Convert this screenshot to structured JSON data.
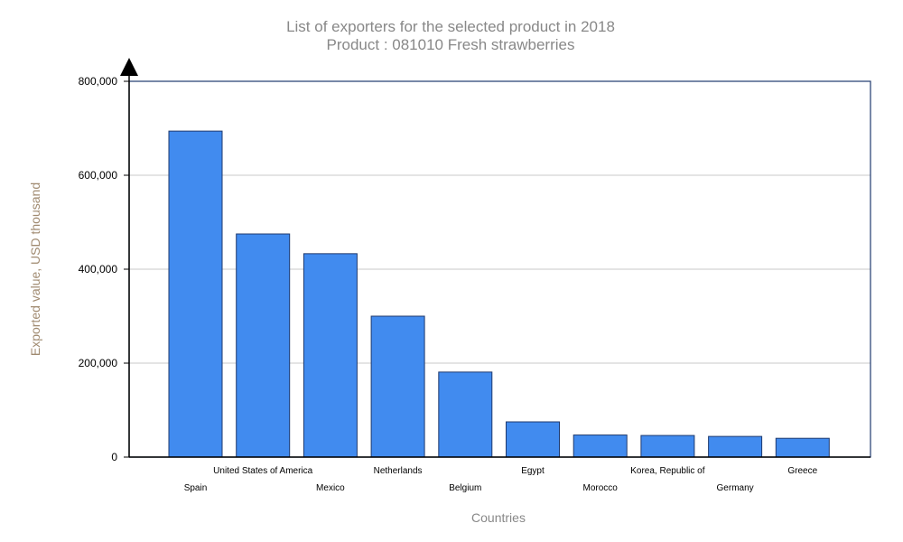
{
  "chart_data": {
    "type": "bar",
    "title": "List of exporters for the selected product in 2018",
    "subtitle": "Product : 081010 Fresh strawberries",
    "xlabel": "Countries",
    "ylabel": "Exported value, USD thousand",
    "ylim": [
      0,
      800000
    ],
    "yticks": [
      0,
      200000,
      400000,
      600000,
      800000
    ],
    "ytick_labels": [
      "0",
      "200,000",
      "400,000",
      "600,000",
      "800,000"
    ],
    "grid": true,
    "categories": [
      "Spain",
      "United States of America",
      "Mexico",
      "Netherlands",
      "Belgium",
      "Egypt",
      "Morocco",
      "Korea, Republic of",
      "Germany",
      "Greece"
    ],
    "values": [
      694000,
      475000,
      433000,
      300000,
      181000,
      75000,
      47000,
      46000,
      44000,
      40000
    ],
    "bar_color": "#418bef"
  }
}
